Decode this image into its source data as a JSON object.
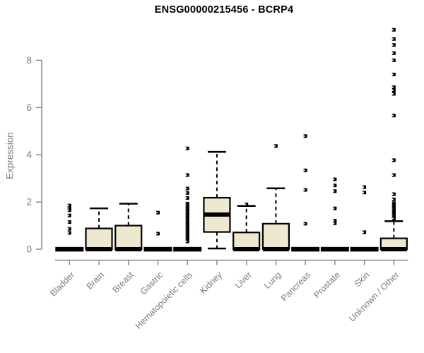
{
  "chart_data": {
    "type": "boxplot",
    "title": "ENSG00000215456 - BCRP4",
    "ylabel": "Expression",
    "xlabel": "",
    "ylim": [
      0,
      9.4
    ],
    "yticks": [
      0,
      2,
      4,
      6,
      8
    ],
    "grid": false,
    "legend": "none",
    "colors": {
      "box_fill": "#EDE8CF",
      "box_stroke": "#000000",
      "axis_line": "#8a8a8a",
      "axis_text": "#7b7b7b",
      "title_text": "#000000"
    },
    "categories": [
      "Bladder",
      "Brain",
      "Breast",
      "Gastric",
      "Hematopoietic cells",
      "Kidney",
      "Liver",
      "Lung",
      "Pancreas",
      "Prostate",
      "Skin",
      "Unknown / Other"
    ],
    "series": [
      {
        "category": "Bladder",
        "q1": 0,
        "median": 0,
        "q3": 0,
        "whisker_low": 0,
        "whisker_high": 0,
        "outliers": [
          1.85,
          1.73,
          1.65,
          1.43,
          1.15,
          0.86,
          0.69
        ]
      },
      {
        "category": "Brain",
        "q1": 0,
        "median": 0,
        "q3": 0.88,
        "whisker_low": 0,
        "whisker_high": 1.73,
        "outliers": []
      },
      {
        "category": "Breast",
        "q1": 0,
        "median": 0,
        "q3": 1.0,
        "whisker_low": 0,
        "whisker_high": 1.93,
        "outliers": []
      },
      {
        "category": "Gastric",
        "q1": 0,
        "median": 0,
        "q3": 0,
        "whisker_low": 0,
        "whisker_high": 0,
        "outliers": [
          1.55,
          0.66
        ]
      },
      {
        "category": "Hematopoietic cells",
        "q1": 0,
        "median": 0,
        "q3": 0,
        "whisker_low": 0,
        "whisker_high": 0,
        "outliers": [
          4.27,
          3.14,
          2.57,
          2.38,
          2.17,
          1.93,
          1.88,
          1.83,
          1.78,
          1.73,
          1.68,
          1.63,
          1.58,
          1.53,
          1.48,
          1.43,
          1.38,
          1.33,
          1.28,
          1.23,
          1.18,
          1.13,
          1.08,
          1.03,
          0.98,
          0.93,
          0.88,
          0.83,
          0.78,
          0.73,
          0.68,
          0.63,
          0.58,
          0.53,
          0.48,
          0.43,
          0.38,
          0.33
        ]
      },
      {
        "category": "Kidney",
        "q1": 0.73,
        "median": 1.47,
        "q3": 2.18,
        "whisker_low": 0.03,
        "whisker_high": 4.12,
        "outliers": []
      },
      {
        "category": "Liver",
        "q1": 0,
        "median": 0,
        "q3": 0.71,
        "whisker_low": 0,
        "whisker_high": 1.83,
        "outliers": [
          1.9
        ]
      },
      {
        "category": "Lung",
        "q1": 0,
        "median": 0,
        "q3": 1.08,
        "whisker_low": 0,
        "whisker_high": 2.58,
        "outliers": [
          4.37
        ]
      },
      {
        "category": "Pancreas",
        "q1": 0,
        "median": 0,
        "q3": 0,
        "whisker_low": 0,
        "whisker_high": 0,
        "outliers": [
          4.79,
          3.34,
          2.51,
          1.08
        ]
      },
      {
        "category": "Prostate",
        "q1": 0,
        "median": 0,
        "q3": 0,
        "whisker_low": 0,
        "whisker_high": 0,
        "outliers": [
          2.96,
          2.7,
          2.46,
          1.73,
          1.21,
          1.1
        ]
      },
      {
        "category": "Skin",
        "q1": 0,
        "median": 0,
        "q3": 0,
        "whisker_low": 0,
        "whisker_high": 0,
        "outliers": [
          2.63,
          2.4,
          0.72
        ]
      },
      {
        "category": "Unknown / Other",
        "q1": 0,
        "median": 0,
        "q3": 0.46,
        "whisker_low": 0,
        "whisker_high": 1.19,
        "outliers": [
          9.29,
          8.9,
          8.65,
          8.3,
          8.0,
          7.4,
          6.86,
          6.73,
          6.58,
          5.66,
          3.77,
          3.14,
          2.33,
          2.11,
          1.95,
          1.9,
          1.85,
          1.8,
          1.75,
          1.7,
          1.65,
          1.6,
          1.55,
          1.5,
          1.45,
          1.4,
          1.35,
          1.3
        ]
      }
    ]
  }
}
